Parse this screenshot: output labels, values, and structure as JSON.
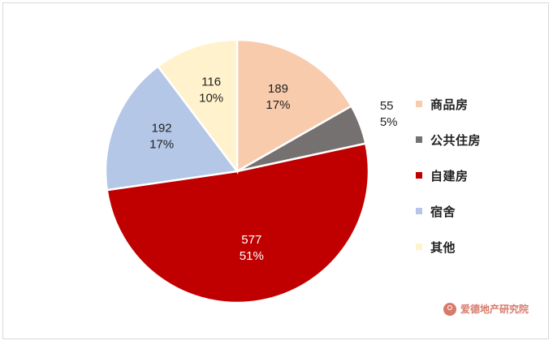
{
  "chart_data": {
    "type": "pie",
    "title": "",
    "categories": [
      "商品房",
      "公共住房",
      "自建房",
      "宿舍",
      "其他"
    ],
    "values": [
      189,
      55,
      577,
      192,
      116
    ],
    "percent_labels": [
      "17%",
      "5%",
      "51%",
      "17%",
      "10%"
    ],
    "colors": [
      "#f8cbad",
      "#767171",
      "#c00000",
      "#b4c7e7",
      "#fff2cc"
    ],
    "value_label_colors": [
      "#222222",
      "#222222",
      "#ffffff",
      "#222222",
      "#222222"
    ],
    "legend_position": "right",
    "start_angle_deg": 0,
    "direction": "clockwise"
  },
  "watermark": {
    "text": "爱德地产研究院",
    "icon": "person-circle-icon",
    "color": "#d77a6b"
  }
}
